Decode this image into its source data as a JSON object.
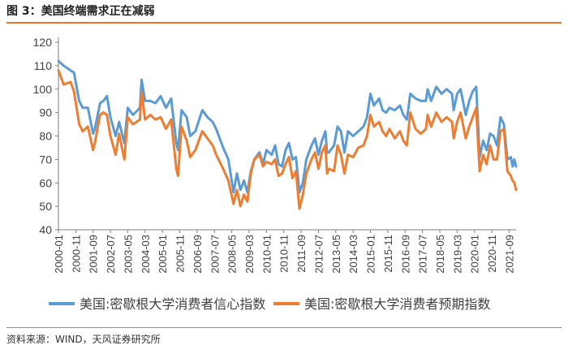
{
  "figure": {
    "title": "图 3：美国终端需求正在减弱",
    "source": "资料来源：WIND，天风证券研究所"
  },
  "colors": {
    "series_confidence": "#5b9bd5",
    "series_expectations": "#ed7d31",
    "accent_rule": "#e8742b",
    "axis": "#7f7f7f",
    "text": "#404040"
  },
  "chart_data": {
    "type": "line",
    "title": "",
    "xlabel": "",
    "ylabel": "",
    "ylim": [
      40,
      120
    ],
    "yticks": [
      40,
      50,
      60,
      70,
      80,
      90,
      100,
      110,
      120
    ],
    "grid": false,
    "legend_position": "bottom",
    "x_start": "2000-01",
    "x_end": "2022-01",
    "xtick_labels": [
      "2000-01",
      "2000-11",
      "2001-09",
      "2002-07",
      "2003-05",
      "2004-03",
      "2005-01",
      "2005-11",
      "2006-09",
      "2007-07",
      "2008-05",
      "2009-03",
      "2010-01",
      "2010-11",
      "2011-09",
      "2012-07",
      "2013-05",
      "2014-03",
      "2015-01",
      "2015-11",
      "2016-09",
      "2017-07",
      "2018-05",
      "2019-03",
      "2020-01",
      "2020-11",
      "2021-09"
    ],
    "series": [
      {
        "name": "美国:密歇根大学消费者信心指数",
        "color": "#5b9bd5",
        "points": [
          [
            "2000-01",
            112
          ],
          [
            "2000-04",
            110
          ],
          [
            "2000-08",
            108
          ],
          [
            "2000-10",
            107
          ],
          [
            "2001-01",
            95
          ],
          [
            "2001-03",
            92
          ],
          [
            "2001-06",
            92
          ],
          [
            "2001-09",
            81
          ],
          [
            "2001-10",
            83
          ],
          [
            "2002-01",
            94
          ],
          [
            "2002-03",
            95
          ],
          [
            "2002-05",
            97
          ],
          [
            "2002-07",
            88
          ],
          [
            "2002-10",
            80
          ],
          [
            "2002-12",
            86
          ],
          [
            "2003-03",
            77
          ],
          [
            "2003-05",
            92
          ],
          [
            "2003-08",
            89
          ],
          [
            "2003-12",
            92
          ],
          [
            "2004-01",
            104
          ],
          [
            "2004-03",
            95
          ],
          [
            "2004-06",
            95
          ],
          [
            "2004-09",
            94
          ],
          [
            "2004-12",
            97
          ],
          [
            "2005-03",
            92
          ],
          [
            "2005-06",
            96
          ],
          [
            "2005-09",
            77
          ],
          [
            "2005-10",
            74
          ],
          [
            "2005-12",
            91
          ],
          [
            "2006-03",
            88
          ],
          [
            "2006-05",
            80
          ],
          [
            "2006-08",
            82
          ],
          [
            "2006-12",
            91
          ],
          [
            "2007-03",
            88
          ],
          [
            "2007-06",
            86
          ],
          [
            "2007-08",
            83
          ],
          [
            "2007-12",
            75
          ],
          [
            "2008-03",
            70
          ],
          [
            "2008-06",
            56
          ],
          [
            "2008-08",
            64
          ],
          [
            "2008-10",
            57
          ],
          [
            "2008-12",
            61
          ],
          [
            "2009-02",
            56
          ],
          [
            "2009-04",
            65
          ],
          [
            "2009-06",
            70
          ],
          [
            "2009-09",
            73
          ],
          [
            "2009-11",
            68
          ],
          [
            "2010-01",
            74
          ],
          [
            "2010-04",
            72
          ],
          [
            "2010-06",
            76
          ],
          [
            "2010-08",
            68
          ],
          [
            "2010-10",
            67
          ],
          [
            "2010-12",
            74
          ],
          [
            "2011-02",
            77
          ],
          [
            "2011-04",
            70
          ],
          [
            "2011-06",
            71
          ],
          [
            "2011-08",
            56
          ],
          [
            "2011-10",
            60
          ],
          [
            "2011-12",
            70
          ],
          [
            "2012-03",
            76
          ],
          [
            "2012-05",
            79
          ],
          [
            "2012-07",
            72
          ],
          [
            "2012-09",
            78
          ],
          [
            "2012-11",
            82
          ],
          [
            "2012-12",
            73
          ],
          [
            "2013-01",
            73
          ],
          [
            "2013-04",
            76
          ],
          [
            "2013-06",
            84
          ],
          [
            "2013-08",
            82
          ],
          [
            "2013-10",
            73
          ],
          [
            "2013-12",
            82
          ],
          [
            "2014-03",
            80
          ],
          [
            "2014-06",
            82
          ],
          [
            "2014-09",
            84
          ],
          [
            "2014-11",
            88
          ],
          [
            "2015-01",
            98
          ],
          [
            "2015-03",
            93
          ],
          [
            "2015-06",
            96
          ],
          [
            "2015-08",
            91
          ],
          [
            "2015-10",
            90
          ],
          [
            "2015-12",
            92
          ],
          [
            "2016-03",
            91
          ],
          [
            "2016-06",
            93
          ],
          [
            "2016-08",
            89
          ],
          [
            "2016-10",
            87
          ],
          [
            "2016-12",
            98
          ],
          [
            "2017-03",
            96
          ],
          [
            "2017-06",
            95
          ],
          [
            "2017-09",
            95
          ],
          [
            "2017-10",
            100
          ],
          [
            "2017-12",
            95
          ],
          [
            "2018-03",
            101
          ],
          [
            "2018-06",
            98
          ],
          [
            "2018-09",
            100
          ],
          [
            "2018-12",
            98
          ],
          [
            "2019-01",
            91
          ],
          [
            "2019-03",
            98
          ],
          [
            "2019-05",
            100
          ],
          [
            "2019-08",
            89
          ],
          [
            "2019-10",
            95
          ],
          [
            "2019-12",
            99
          ],
          [
            "2020-02",
            101
          ],
          [
            "2020-04",
            71
          ],
          [
            "2020-06",
            78
          ],
          [
            "2020-08",
            74
          ],
          [
            "2020-10",
            81
          ],
          [
            "2020-12",
            80
          ],
          [
            "2021-02",
            76
          ],
          [
            "2021-04",
            88
          ],
          [
            "2021-06",
            85
          ],
          [
            "2021-08",
            70
          ],
          [
            "2021-10",
            71
          ],
          [
            "2021-11",
            67
          ],
          [
            "2021-12",
            70
          ],
          [
            "2022-01",
            67
          ]
        ]
      },
      {
        "name": "美国:密歇根大学消费者预期指数",
        "color": "#ed7d31",
        "points": [
          [
            "2000-01",
            108
          ],
          [
            "2000-04",
            102
          ],
          [
            "2000-08",
            103
          ],
          [
            "2000-10",
            99
          ],
          [
            "2001-01",
            85
          ],
          [
            "2001-03",
            82
          ],
          [
            "2001-06",
            84
          ],
          [
            "2001-09",
            74
          ],
          [
            "2001-10",
            77
          ],
          [
            "2002-01",
            89
          ],
          [
            "2002-03",
            90
          ],
          [
            "2002-05",
            89
          ],
          [
            "2002-07",
            80
          ],
          [
            "2002-10",
            72
          ],
          [
            "2002-12",
            81
          ],
          [
            "2003-03",
            70
          ],
          [
            "2003-05",
            88
          ],
          [
            "2003-08",
            85
          ],
          [
            "2003-12",
            87
          ],
          [
            "2004-01",
            99
          ],
          [
            "2004-03",
            87
          ],
          [
            "2004-06",
            89
          ],
          [
            "2004-09",
            87
          ],
          [
            "2004-12",
            88
          ],
          [
            "2005-03",
            83
          ],
          [
            "2005-06",
            87
          ],
          [
            "2005-09",
            66
          ],
          [
            "2005-10",
            63
          ],
          [
            "2005-12",
            84
          ],
          [
            "2006-03",
            78
          ],
          [
            "2006-05",
            71
          ],
          [
            "2006-08",
            74
          ],
          [
            "2006-12",
            82
          ],
          [
            "2007-03",
            79
          ],
          [
            "2007-06",
            76
          ],
          [
            "2007-08",
            72
          ],
          [
            "2007-12",
            66
          ],
          [
            "2008-03",
            61
          ],
          [
            "2008-06",
            51
          ],
          [
            "2008-08",
            57
          ],
          [
            "2008-10",
            50
          ],
          [
            "2008-12",
            55
          ],
          [
            "2009-02",
            52
          ],
          [
            "2009-04",
            64
          ],
          [
            "2009-06",
            70
          ],
          [
            "2009-09",
            72
          ],
          [
            "2009-11",
            67
          ],
          [
            "2010-01",
            69
          ],
          [
            "2010-04",
            68
          ],
          [
            "2010-06",
            70
          ],
          [
            "2010-08",
            63
          ],
          [
            "2010-10",
            64
          ],
          [
            "2010-12",
            68
          ],
          [
            "2011-02",
            71
          ],
          [
            "2011-04",
            62
          ],
          [
            "2011-06",
            65
          ],
          [
            "2011-08",
            49
          ],
          [
            "2011-10",
            55
          ],
          [
            "2011-12",
            64
          ],
          [
            "2012-03",
            70
          ],
          [
            "2012-05",
            73
          ],
          [
            "2012-07",
            66
          ],
          [
            "2012-09",
            73
          ],
          [
            "2012-11",
            76
          ],
          [
            "2012-12",
            64
          ],
          [
            "2013-01",
            66
          ],
          [
            "2013-04",
            65
          ],
          [
            "2013-06",
            76
          ],
          [
            "2013-08",
            72
          ],
          [
            "2013-10",
            64
          ],
          [
            "2013-12",
            72
          ],
          [
            "2014-03",
            71
          ],
          [
            "2014-06",
            75
          ],
          [
            "2014-09",
            76
          ],
          [
            "2014-11",
            80
          ],
          [
            "2015-01",
            89
          ],
          [
            "2015-03",
            84
          ],
          [
            "2015-06",
            86
          ],
          [
            "2015-08",
            82
          ],
          [
            "2015-10",
            80
          ],
          [
            "2015-12",
            83
          ],
          [
            "2016-03",
            79
          ],
          [
            "2016-06",
            82
          ],
          [
            "2016-08",
            78
          ],
          [
            "2016-10",
            76
          ],
          [
            "2016-12",
            90
          ],
          [
            "2017-03",
            83
          ],
          [
            "2017-06",
            81
          ],
          [
            "2017-09",
            83
          ],
          [
            "2017-10",
            89
          ],
          [
            "2017-12",
            84
          ],
          [
            "2018-03",
            90
          ],
          [
            "2018-06",
            86
          ],
          [
            "2018-09",
            88
          ],
          [
            "2018-12",
            86
          ],
          [
            "2019-01",
            79
          ],
          [
            "2019-03",
            86
          ],
          [
            "2019-05",
            90
          ],
          [
            "2019-08",
            79
          ],
          [
            "2019-10",
            84
          ],
          [
            "2019-12",
            88
          ],
          [
            "2020-02",
            92
          ],
          [
            "2020-04",
            65
          ],
          [
            "2020-06",
            72
          ],
          [
            "2020-08",
            68
          ],
          [
            "2020-10",
            76
          ],
          [
            "2020-12",
            70
          ],
          [
            "2021-02",
            70
          ],
          [
            "2021-04",
            82
          ],
          [
            "2021-06",
            83
          ],
          [
            "2021-08",
            65
          ],
          [
            "2021-10",
            63
          ],
          [
            "2021-11",
            61
          ],
          [
            "2021-12",
            60
          ],
          [
            "2022-01",
            57
          ]
        ]
      }
    ]
  }
}
